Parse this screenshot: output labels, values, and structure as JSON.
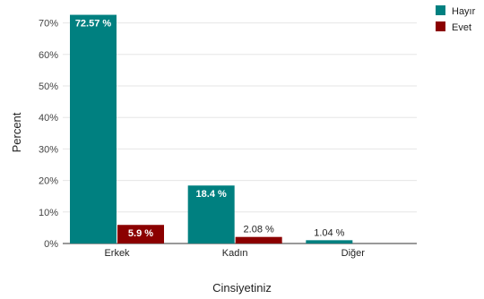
{
  "chart_data": {
    "type": "bar",
    "xlabel": "Cinsiyetiniz",
    "ylabel": "Percent",
    "ylim": [
      0,
      75
    ],
    "yticks": [
      0,
      10,
      20,
      30,
      40,
      50,
      60,
      70
    ],
    "ytick_suffix": "%",
    "categories": [
      "Erkek",
      "Kadın",
      "Diğer"
    ],
    "series": [
      {
        "name": "Hayır",
        "color": "#008080",
        "values": [
          72.57,
          18.4,
          1.04
        ],
        "labels": [
          "72.57 %",
          "18.4 %",
          "1.04 %"
        ]
      },
      {
        "name": "Evet",
        "color": "#8b0000",
        "values": [
          5.9,
          2.08,
          null
        ],
        "labels": [
          "5.9 %",
          "2.08 %",
          null
        ]
      }
    ],
    "legend_position": "top-right",
    "grid": true
  }
}
